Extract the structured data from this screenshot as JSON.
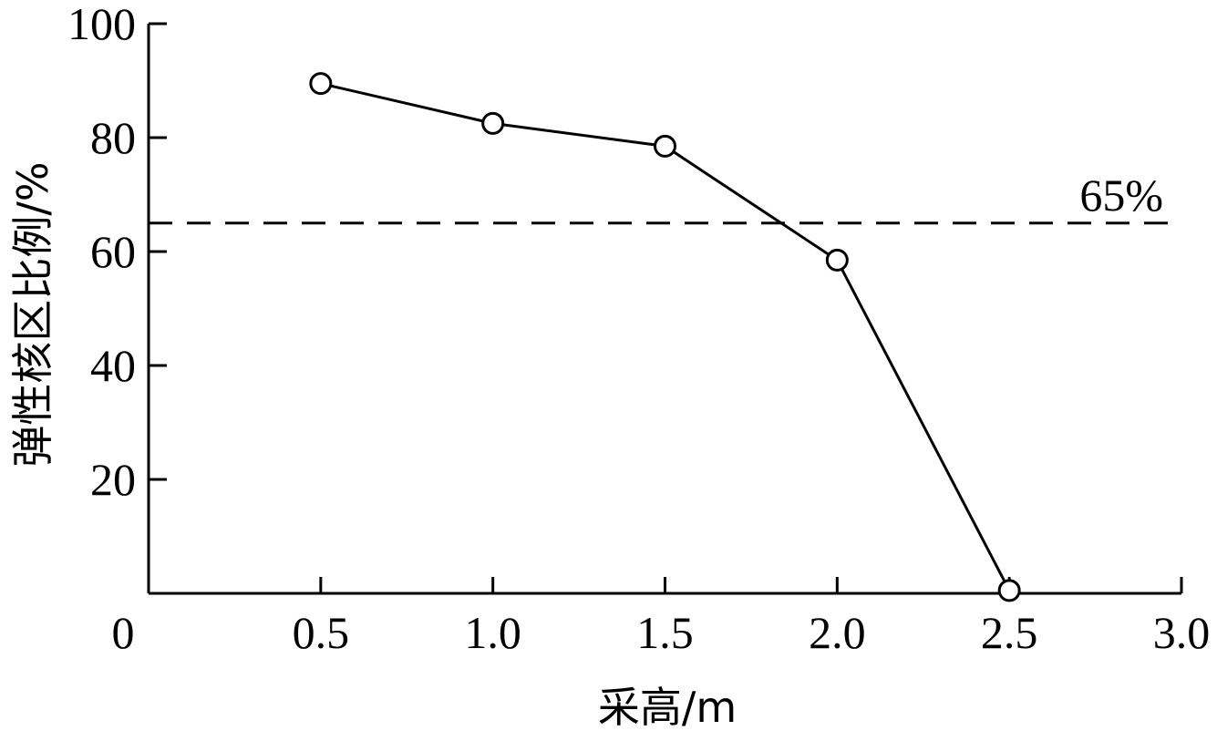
{
  "chart_data": {
    "type": "line",
    "xlabel": "采高/m",
    "ylabel": "弹性核区比例/%",
    "xlim": [
      0,
      3.0
    ],
    "ylim": [
      0,
      100
    ],
    "x_ticks": [
      "0",
      "0.5",
      "1.0",
      "1.5",
      "2.0",
      "2.5",
      "3.0"
    ],
    "x_tick_values": [
      0,
      0.5,
      1.0,
      1.5,
      2.0,
      2.5,
      3.0
    ],
    "y_ticks": [
      "20",
      "40",
      "60",
      "80",
      "100"
    ],
    "y_tick_values": [
      20,
      40,
      60,
      80,
      100
    ],
    "series": [
      {
        "marker": "open-circle",
        "color": "#000000",
        "points": [
          {
            "x": 0.5,
            "y": 89.5
          },
          {
            "x": 1.0,
            "y": 82.5
          },
          {
            "x": 1.5,
            "y": 78.5
          },
          {
            "x": 2.0,
            "y": 58.5
          },
          {
            "x": 2.5,
            "y": 0.5
          }
        ]
      }
    ],
    "reference_line": {
      "y": 65,
      "label": "65%",
      "style": "dashed"
    },
    "grid": false,
    "legend": "none"
  }
}
